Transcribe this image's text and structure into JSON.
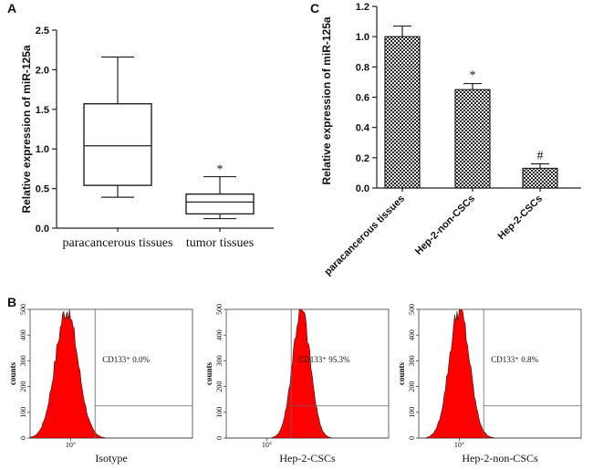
{
  "panels": {
    "a": "A",
    "b": "B",
    "c": "C"
  },
  "chart_data": [
    {
      "type": "box",
      "panel": "A",
      "ylabel": "Relative expression of miR-125a",
      "ylim": [
        0,
        2.5
      ],
      "yticks": [
        "0.0",
        "0.5",
        "1.0",
        "1.5",
        "2.0",
        "2.5"
      ],
      "categories": [
        "paracancerous tissues",
        "tumor tissues"
      ],
      "boxes": [
        {
          "min": 0.39,
          "q1": 0.54,
          "median": 1.04,
          "q3": 1.57,
          "max": 2.16,
          "marker": ""
        },
        {
          "min": 0.12,
          "q1": 0.18,
          "median": 0.33,
          "q3": 0.43,
          "max": 0.65,
          "marker": "*"
        }
      ]
    },
    {
      "type": "bar",
      "panel": "C",
      "ylabel": "Relative expression of miR-125a",
      "ylim": [
        0,
        1.2
      ],
      "yticks": [
        "0.0",
        "0.2",
        "0.4",
        "0.6",
        "0.8",
        "1.0",
        "1.2"
      ],
      "categories": [
        "paracancerous tissues",
        "Hep-2-non-CSCs",
        "Hep-2-CSCs"
      ],
      "values": [
        1.0,
        0.65,
        0.13
      ],
      "errors": [
        0.07,
        0.04,
        0.03
      ],
      "markers": [
        "",
        "*",
        "#"
      ]
    },
    {
      "type": "histogram",
      "panel": "B",
      "ylabel": "counts",
      "ylim": [
        0,
        500
      ],
      "yticks": [
        "0",
        "100",
        "200",
        "300",
        "400",
        "500"
      ],
      "xtick": "10°",
      "histograms": [
        {
          "name": "Isotype",
          "label": "CD133⁺ 0.0%",
          "peak_log": 0.9,
          "width": 0.28,
          "gate_log": 1.6,
          "gate_height": 125
        },
        {
          "name": "Hep-2-CSCs",
          "label": "CD133⁺ 95.3%",
          "peak_log": 1.85,
          "width": 0.22,
          "gate_log": 1.6,
          "gate_height": 125
        },
        {
          "name": "Hep-2-non-CSCs",
          "label": "CD133⁺ 0.8%",
          "peak_log": 1.0,
          "width": 0.25,
          "gate_log": 1.6,
          "gate_height": 125
        }
      ]
    }
  ]
}
